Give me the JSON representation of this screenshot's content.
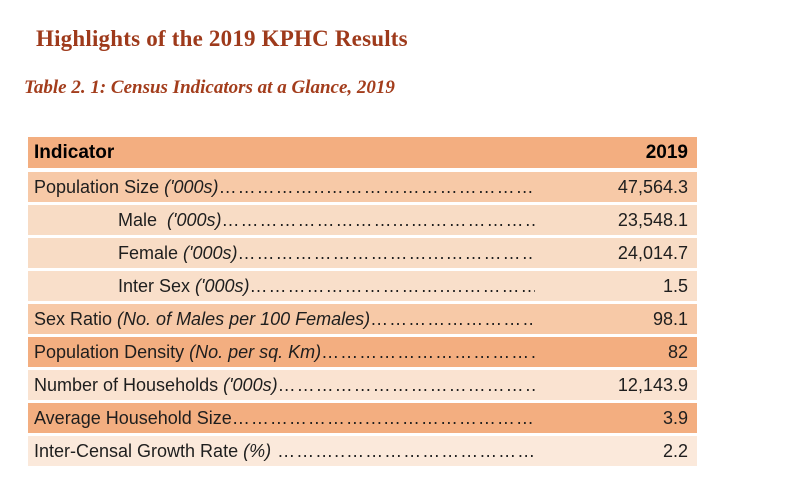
{
  "page": {
    "title": "Highlights of the 2019 KPHC Results",
    "subtitle": "Table 2. 1: Census Indicators at a Glance, 2019"
  },
  "colors": {
    "title_text": "#9E3A1B",
    "subtitle_text": "#A33D1C",
    "header_band": "#F3AE80",
    "band_dark": "#F3AE80",
    "band_medium": "#F7C9A7",
    "band_light": "#F8DCC5",
    "band_xlight": "#FAE3D1",
    "band_xxlight": "#FBE9DB"
  },
  "table": {
    "header": {
      "indicator": "Indicator",
      "year": "2019",
      "bg": "#F3AE80"
    },
    "rows": [
      {
        "label": "Population Size",
        "note": " ('000s)",
        "leader": "……………..…………………………………",
        "value": "47,564.3",
        "bg": "#F7C9A7"
      },
      {
        "label": "Male",
        "note": "  ('000s)",
        "leader": "………………………...………………………",
        "value": "23,548.1",
        "bg": "#F8DCC5"
      },
      {
        "label": "Female",
        "note": " ('000s)",
        "leader": "…………………………...……………………",
        "value": "24,014.7",
        "bg": "#F8DCC5"
      },
      {
        "label": "Inter Sex",
        "note": " ('000s)",
        "leader": "…………………………....……………………",
        "value": "1.5",
        "bg": "#F9DFCA"
      },
      {
        "label": "Sex Ratio",
        "note": " (No. of Males per 100 Females)",
        "leader": "………………………………",
        "value": "98.1",
        "bg": "#F7C9A7"
      },
      {
        "label": "Population Density",
        "note": " (No. per sq. Km)",
        "leader": "………………………………………",
        "value": "82",
        "bg": "#F3AE80"
      },
      {
        "label": "Number of Households",
        "note": " ('000s)",
        "leader": "……………………………………",
        "value": "12,143.9",
        "bg": "#FAE3D1"
      },
      {
        "label": "Average Household Size",
        "note": "",
        "leader": "…………………...……………………………",
        "value": "3.9",
        "bg": "#F3AE80"
      },
      {
        "label": "Inter-Censal Growth Rate",
        "note": " (%)",
        "leader": " ………..……………………………",
        "value": "2.2",
        "bg": "#FBE9DB"
      }
    ]
  }
}
